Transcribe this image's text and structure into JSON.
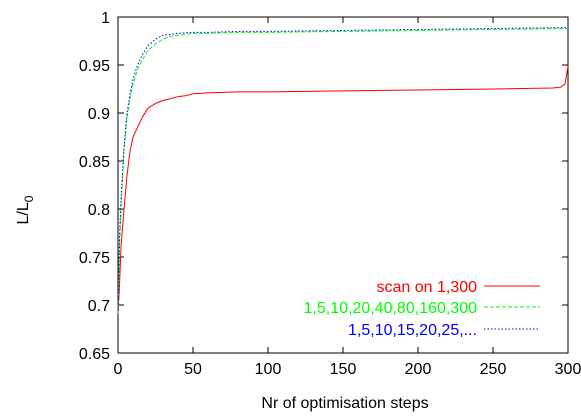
{
  "chart_data": {
    "type": "line",
    "title": "",
    "xlabel": "Nr of optimisation steps",
    "ylabel": "L/L",
    "ylabel_subscript": "0",
    "xlim": [
      0,
      300
    ],
    "ylim": [
      0.65,
      1.0
    ],
    "x_ticks": [
      0,
      50,
      100,
      150,
      200,
      250,
      300
    ],
    "y_ticks": [
      0.65,
      0.7,
      0.75,
      0.8,
      0.85,
      0.9,
      0.95,
      1.0
    ],
    "x_tick_labels": [
      "0",
      "50",
      "100",
      "150",
      "200",
      "250",
      "300"
    ],
    "y_tick_labels": [
      "0.65",
      "0.7",
      "0.75",
      "0.8",
      "0.85",
      "0.9",
      "0.95",
      "1"
    ],
    "grid": false,
    "legend_position": "bottom-right",
    "series": [
      {
        "name": "scan on 1,300",
        "color": "#ff0000",
        "dash": "solid",
        "x": [
          0,
          1,
          2,
          4,
          6,
          8,
          10,
          13,
          16,
          20,
          25,
          30,
          35,
          40,
          45,
          50,
          60,
          80,
          100,
          150,
          200,
          250,
          290,
          295,
          298,
          300
        ],
        "y": [
          0.69,
          0.72,
          0.76,
          0.8,
          0.835,
          0.86,
          0.875,
          0.885,
          0.895,
          0.905,
          0.91,
          0.913,
          0.915,
          0.917,
          0.918,
          0.92,
          0.921,
          0.922,
          0.922,
          0.923,
          0.924,
          0.925,
          0.926,
          0.927,
          0.93,
          0.949
        ]
      },
      {
        "name": "1,5,10,20,40,80,160,300",
        "color": "#00ff00",
        "dash": "dashed",
        "x": [
          0,
          1,
          2,
          4,
          6,
          8,
          10,
          13,
          16,
          20,
          25,
          30,
          35,
          40,
          50,
          60,
          80,
          100,
          150,
          200,
          250,
          300
        ],
        "y": [
          0.69,
          0.76,
          0.8,
          0.86,
          0.895,
          0.915,
          0.93,
          0.945,
          0.955,
          0.965,
          0.972,
          0.977,
          0.98,
          0.981,
          0.983,
          0.983,
          0.984,
          0.984,
          0.985,
          0.986,
          0.987,
          0.988
        ]
      },
      {
        "name": "1,5,10,15,20,25,...",
        "color": "#0000ff",
        "dash": "dotted",
        "x": [
          0,
          1,
          2,
          4,
          6,
          8,
          10,
          13,
          16,
          20,
          25,
          30,
          35,
          40,
          50,
          60,
          80,
          100,
          150,
          200,
          250,
          300
        ],
        "y": [
          0.69,
          0.77,
          0.81,
          0.865,
          0.9,
          0.92,
          0.935,
          0.95,
          0.96,
          0.97,
          0.977,
          0.981,
          0.982,
          0.983,
          0.984,
          0.984,
          0.985,
          0.985,
          0.986,
          0.987,
          0.988,
          0.989
        ]
      }
    ]
  }
}
